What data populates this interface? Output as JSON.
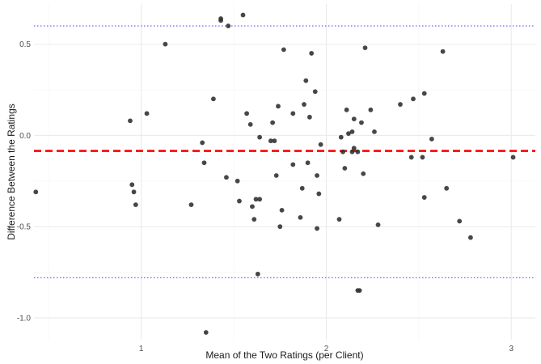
{
  "chart_data": {
    "type": "scatter",
    "title": "",
    "xlabel": "Mean of the Two Ratings (per Client)",
    "ylabel": "Difference Between the Ratings",
    "xlim": [
      0.42,
      3.13
    ],
    "ylim": [
      -1.12,
      0.72
    ],
    "x_ticks": [
      1,
      2,
      3
    ],
    "y_ticks": [
      -1.0,
      -0.5,
      0.0,
      0.5
    ],
    "x_tick_labels": [
      "1",
      "2",
      "3"
    ],
    "y_tick_labels": [
      "-1.0",
      "-0.5",
      "0.0",
      "0.5"
    ],
    "grid": true,
    "legend": "none",
    "colors": {
      "points": "#333333",
      "mean_line": "#ff0000",
      "limit_lines": "#5555ee",
      "grid_major": "#ebebeb",
      "grid_minor": "#f5f5f5"
    },
    "reference_lines": {
      "mean_difference": -0.085,
      "upper_limit": 0.6,
      "lower_limit": -0.78
    },
    "points": [
      {
        "x": 0.43,
        "y": -0.31
      },
      {
        "x": 0.94,
        "y": 0.08
      },
      {
        "x": 0.95,
        "y": -0.27
      },
      {
        "x": 0.96,
        "y": -0.31
      },
      {
        "x": 0.97,
        "y": -0.38
      },
      {
        "x": 1.03,
        "y": 0.12
      },
      {
        "x": 1.13,
        "y": 0.5
      },
      {
        "x": 1.27,
        "y": -0.38
      },
      {
        "x": 1.33,
        "y": -0.04
      },
      {
        "x": 1.34,
        "y": -0.15
      },
      {
        "x": 1.35,
        "y": -1.08
      },
      {
        "x": 1.39,
        "y": 0.2
      },
      {
        "x": 1.43,
        "y": 0.63
      },
      {
        "x": 1.43,
        "y": 0.64
      },
      {
        "x": 1.46,
        "y": -0.23
      },
      {
        "x": 1.47,
        "y": 0.6
      },
      {
        "x": 1.52,
        "y": -0.25
      },
      {
        "x": 1.53,
        "y": -0.36
      },
      {
        "x": 1.55,
        "y": 0.66
      },
      {
        "x": 1.57,
        "y": 0.12
      },
      {
        "x": 1.59,
        "y": 0.06
      },
      {
        "x": 1.6,
        "y": -0.39
      },
      {
        "x": 1.61,
        "y": -0.46
      },
      {
        "x": 1.62,
        "y": -0.35
      },
      {
        "x": 1.63,
        "y": -0.76
      },
      {
        "x": 1.64,
        "y": -0.35
      },
      {
        "x": 1.64,
        "y": -0.01
      },
      {
        "x": 1.7,
        "y": -0.03
      },
      {
        "x": 1.71,
        "y": 0.07
      },
      {
        "x": 1.72,
        "y": -0.03
      },
      {
        "x": 1.73,
        "y": -0.22
      },
      {
        "x": 1.74,
        "y": 0.16
      },
      {
        "x": 1.75,
        "y": -0.5
      },
      {
        "x": 1.76,
        "y": -0.41
      },
      {
        "x": 1.77,
        "y": 0.47
      },
      {
        "x": 1.82,
        "y": 0.12
      },
      {
        "x": 1.82,
        "y": -0.16
      },
      {
        "x": 1.86,
        "y": -0.45
      },
      {
        "x": 1.87,
        "y": -0.29
      },
      {
        "x": 1.88,
        "y": 0.17
      },
      {
        "x": 1.89,
        "y": 0.3
      },
      {
        "x": 1.9,
        "y": -0.15
      },
      {
        "x": 1.91,
        "y": 0.1
      },
      {
        "x": 1.92,
        "y": 0.45
      },
      {
        "x": 1.94,
        "y": 0.24
      },
      {
        "x": 1.95,
        "y": -0.22
      },
      {
        "x": 1.95,
        "y": -0.51
      },
      {
        "x": 1.96,
        "y": -0.32
      },
      {
        "x": 1.97,
        "y": -0.05
      },
      {
        "x": 2.07,
        "y": -0.46
      },
      {
        "x": 2.08,
        "y": -0.01
      },
      {
        "x": 2.09,
        "y": -0.09
      },
      {
        "x": 2.1,
        "y": -0.18
      },
      {
        "x": 2.11,
        "y": 0.14
      },
      {
        "x": 2.12,
        "y": 0.01
      },
      {
        "x": 2.14,
        "y": 0.02
      },
      {
        "x": 2.14,
        "y": -0.09
      },
      {
        "x": 2.15,
        "y": 0.09
      },
      {
        "x": 2.15,
        "y": -0.07
      },
      {
        "x": 2.17,
        "y": -0.85
      },
      {
        "x": 2.17,
        "y": -0.09
      },
      {
        "x": 2.18,
        "y": -0.85
      },
      {
        "x": 2.19,
        "y": 0.07
      },
      {
        "x": 2.2,
        "y": -0.21
      },
      {
        "x": 2.21,
        "y": 0.48
      },
      {
        "x": 2.24,
        "y": 0.14
      },
      {
        "x": 2.26,
        "y": 0.02
      },
      {
        "x": 2.28,
        "y": -0.49
      },
      {
        "x": 2.4,
        "y": 0.17
      },
      {
        "x": 2.46,
        "y": -0.12
      },
      {
        "x": 2.47,
        "y": 0.2
      },
      {
        "x": 2.52,
        "y": -0.12
      },
      {
        "x": 2.53,
        "y": 0.23
      },
      {
        "x": 2.53,
        "y": -0.34
      },
      {
        "x": 2.57,
        "y": -0.02
      },
      {
        "x": 2.63,
        "y": 0.46
      },
      {
        "x": 2.65,
        "y": -0.29
      },
      {
        "x": 2.72,
        "y": -0.47
      },
      {
        "x": 2.78,
        "y": -0.56
      },
      {
        "x": 3.01,
        "y": -0.12
      }
    ]
  }
}
